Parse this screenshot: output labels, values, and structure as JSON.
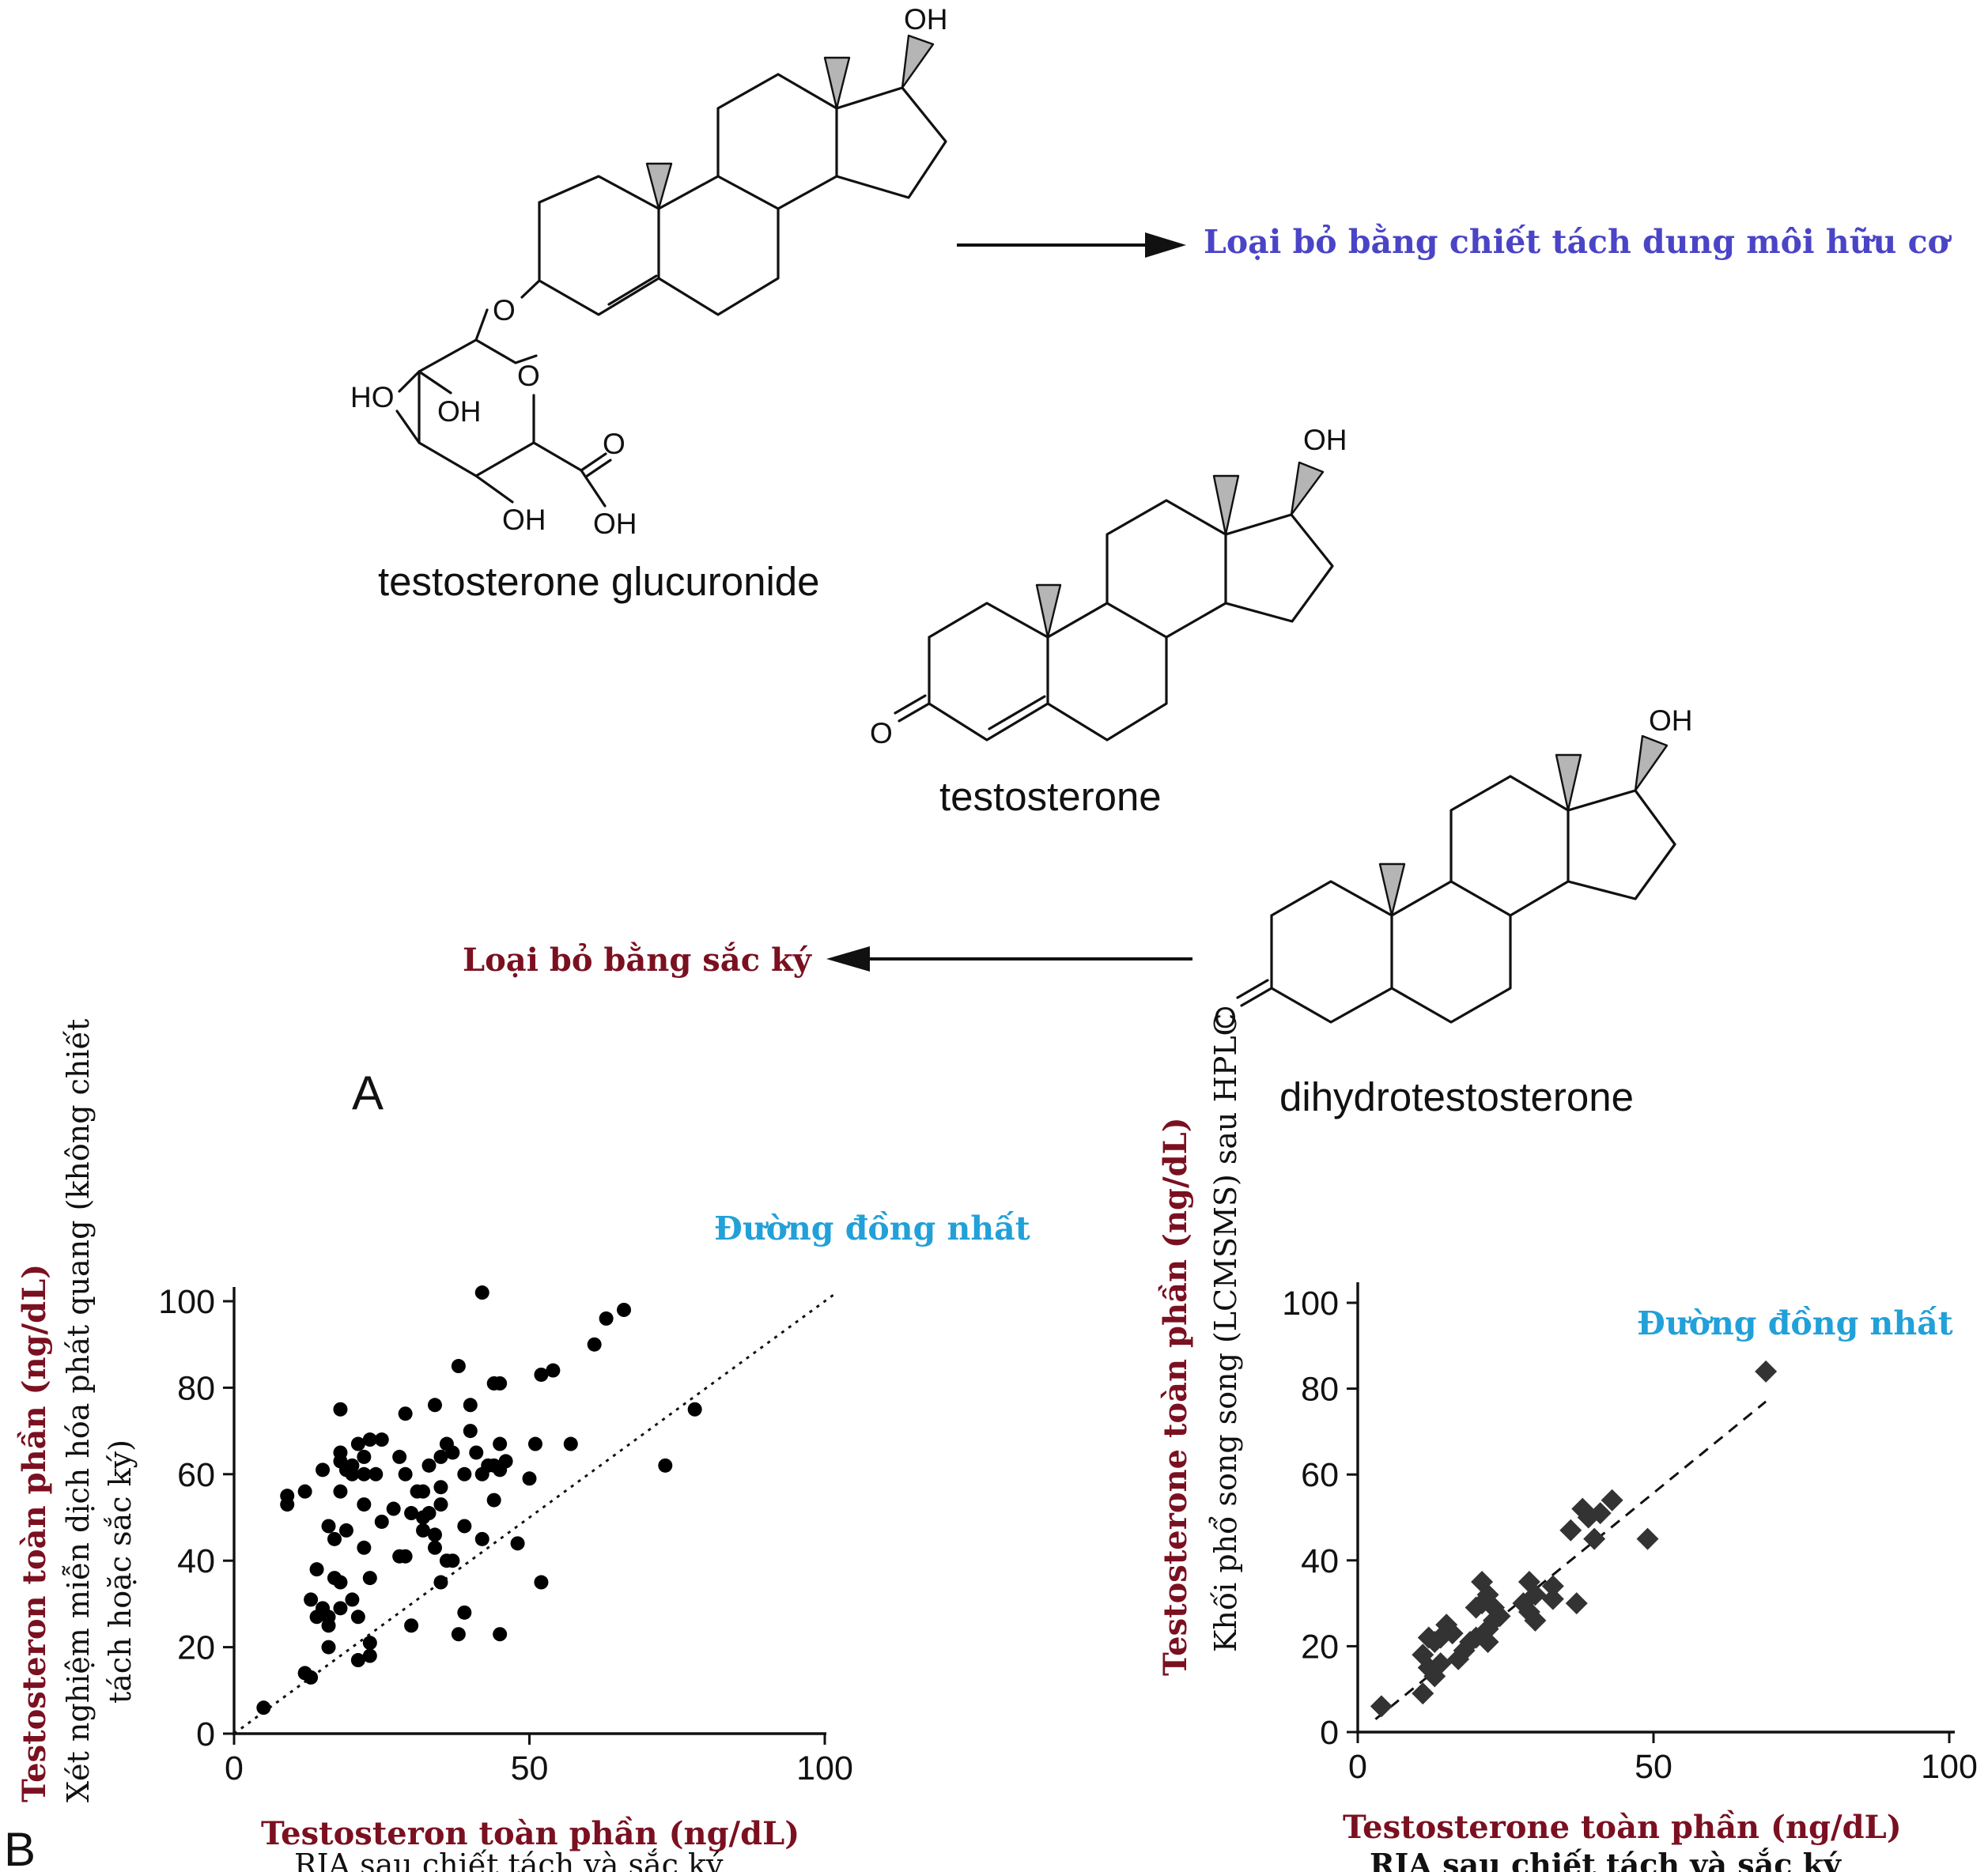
{
  "panel_a": {
    "letter": "A",
    "molecules": {
      "testosterone_glucuronide": "testosterone glucuronide",
      "testosterone": "testosterone",
      "dihydrotestosterone": "dihydrotestosterone"
    },
    "atom_labels": {
      "oh": "OH",
      "ho": "HO",
      "o": "O"
    },
    "arrow_right_label": "Loại bỏ bằng chiết tách dung môi hữu cơ",
    "arrow_left_label": "Loại bỏ bằng sắc ký",
    "colors": {
      "right_label": "#4a44c6",
      "left_label": "#7a1020"
    }
  },
  "panel_b": {
    "letter": "B",
    "colors": {
      "axis_title": "#7a1020",
      "identity_label": "#22a0d8"
    }
  },
  "chart_data": [
    {
      "type": "scatter",
      "marker": "circle",
      "identity_line_label": "Đường đồng nhất",
      "x_title": "Testosteron toàn phần (ng/dL)",
      "x_subtitle": "RIA sau chiết tách và sắc ký",
      "y_title": "Testosteron toàn phần (ng/dL)",
      "y_subtitle_1": "Xét nghiệm miễn dịch hóa phát quang (không chiết",
      "y_subtitle_2": "tách hoặc sắc ký)",
      "xlim": [
        0,
        100
      ],
      "ylim": [
        0,
        100
      ],
      "x_ticks": [
        "0",
        "50",
        "100"
      ],
      "y_ticks": [
        "0",
        "20",
        "40",
        "60",
        "80",
        "100"
      ],
      "points": [
        [
          5,
          6
        ],
        [
          9,
          55
        ],
        [
          9,
          53
        ],
        [
          12,
          56
        ],
        [
          12,
          14
        ],
        [
          13,
          13
        ],
        [
          13,
          31
        ],
        [
          14,
          38
        ],
        [
          14,
          27
        ],
        [
          15,
          61
        ],
        [
          15,
          29
        ],
        [
          16,
          27
        ],
        [
          16,
          48
        ],
        [
          16,
          20
        ],
        [
          16,
          25
        ],
        [
          17,
          36
        ],
        [
          17,
          45
        ],
        [
          18,
          75
        ],
        [
          18,
          65
        ],
        [
          18,
          63
        ],
        [
          18,
          56
        ],
        [
          18,
          35
        ],
        [
          18,
          29
        ],
        [
          19,
          61
        ],
        [
          19,
          47
        ],
        [
          20,
          62
        ],
        [
          20,
          60
        ],
        [
          20,
          31
        ],
        [
          21,
          67
        ],
        [
          21,
          27
        ],
        [
          21,
          17
        ],
        [
          22,
          64
        ],
        [
          22,
          60
        ],
        [
          22,
          53
        ],
        [
          22,
          43
        ],
        [
          23,
          68
        ],
        [
          23,
          36
        ],
        [
          23,
          21
        ],
        [
          23,
          18
        ],
        [
          24,
          60
        ],
        [
          25,
          68
        ],
        [
          25,
          49
        ],
        [
          27,
          52
        ],
        [
          28,
          64
        ],
        [
          28,
          41
        ],
        [
          29,
          74
        ],
        [
          29,
          60
        ],
        [
          29,
          41
        ],
        [
          30,
          51
        ],
        [
          30,
          25
        ],
        [
          31,
          56
        ],
        [
          32,
          56
        ],
        [
          32,
          50
        ],
        [
          32,
          47
        ],
        [
          33,
          62
        ],
        [
          33,
          51
        ],
        [
          34,
          46
        ],
        [
          34,
          76
        ],
        [
          34,
          43
        ],
        [
          35,
          57
        ],
        [
          35,
          64
        ],
        [
          35,
          53
        ],
        [
          35,
          35
        ],
        [
          36,
          40
        ],
        [
          36,
          67
        ],
        [
          37,
          65
        ],
        [
          37,
          40
        ],
        [
          38,
          85
        ],
        [
          38,
          23
        ],
        [
          39,
          60
        ],
        [
          39,
          48
        ],
        [
          39,
          28
        ],
        [
          40,
          76
        ],
        [
          40,
          70
        ],
        [
          41,
          65
        ],
        [
          42,
          60
        ],
        [
          42,
          102
        ],
        [
          42,
          45
        ],
        [
          43,
          62
        ],
        [
          44,
          62
        ],
        [
          44,
          81
        ],
        [
          44,
          54
        ],
        [
          45,
          67
        ],
        [
          45,
          23
        ],
        [
          45,
          81
        ],
        [
          45,
          61
        ],
        [
          46,
          63
        ],
        [
          48,
          44
        ],
        [
          50,
          59
        ],
        [
          51,
          67
        ],
        [
          52,
          83
        ],
        [
          52,
          35
        ],
        [
          54,
          84
        ],
        [
          57,
          67
        ],
        [
          61,
          90
        ],
        [
          63,
          96
        ],
        [
          66,
          98
        ],
        [
          73,
          62
        ],
        [
          78,
          75
        ]
      ]
    },
    {
      "type": "scatter",
      "marker": "diamond",
      "identity_line_label": "Đường đồng nhất",
      "x_title": "Testosterone toàn phần (ng/dL)",
      "x_subtitle": "RIA sau chiết tách và sắc ký",
      "y_title": "Testosterone toàn phần (ng/dL)",
      "y_subtitle": "Khối phổ song song (LCMSMS) sau HPLC",
      "xlim": [
        0,
        100
      ],
      "ylim": [
        0,
        100
      ],
      "x_ticks": [
        "0",
        "50",
        "100"
      ],
      "y_ticks": [
        "0",
        "20",
        "40",
        "60",
        "80",
        "100"
      ],
      "points": [
        [
          4,
          6
        ],
        [
          11,
          18
        ],
        [
          11,
          9
        ],
        [
          12,
          22
        ],
        [
          12,
          15
        ],
        [
          13,
          13
        ],
        [
          13,
          21
        ],
        [
          14,
          22
        ],
        [
          14,
          16
        ],
        [
          15,
          25
        ],
        [
          16,
          23
        ],
        [
          17,
          17
        ],
        [
          18,
          19
        ],
        [
          19,
          21
        ],
        [
          20,
          22
        ],
        [
          20,
          29
        ],
        [
          21,
          35
        ],
        [
          21,
          30
        ],
        [
          22,
          32
        ],
        [
          22,
          24
        ],
        [
          22,
          21
        ],
        [
          23,
          29
        ],
        [
          23,
          26
        ],
        [
          24,
          27
        ],
        [
          28,
          30
        ],
        [
          29,
          35
        ],
        [
          29,
          28
        ],
        [
          30,
          26
        ],
        [
          30,
          32
        ],
        [
          33,
          34
        ],
        [
          33,
          31
        ],
        [
          36,
          47
        ],
        [
          37,
          30
        ],
        [
          38,
          52
        ],
        [
          39,
          50
        ],
        [
          40,
          45
        ],
        [
          41,
          51
        ],
        [
          43,
          54
        ],
        [
          49,
          45
        ],
        [
          69,
          84
        ]
      ]
    }
  ]
}
